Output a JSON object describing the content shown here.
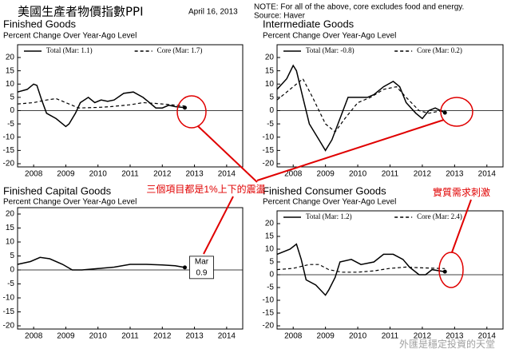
{
  "header": {
    "title": "美國生產者物價指數PPI",
    "date": "April 16, 2013",
    "note": "NOTE: For all of the above, core excludes food and energy.",
    "source": "Source:  Haver"
  },
  "annotations": {
    "oscillation": "三個項目都是1%上下的震盪",
    "demand": "實質需求刺激",
    "watermark": "外匯是穩定投資的天堂"
  },
  "chart_data": [
    {
      "type": "line",
      "title": "Finished Goods",
      "subtitle": "Percent Change Over Year-Ago Level",
      "zero_line": true,
      "xlim": [
        2008,
        2015
      ],
      "ylim": [
        -20,
        20
      ],
      "yticks": [
        -20,
        -15,
        -10,
        -5,
        0,
        5,
        10,
        15,
        20
      ],
      "xticks": [
        {
          "value": 2008.5,
          "label": "2008"
        },
        {
          "value": 2009.5,
          "label": "2009"
        },
        {
          "value": 2010.5,
          "label": "2010"
        },
        {
          "value": 2011.5,
          "label": "2011"
        },
        {
          "value": 2012.5,
          "label": "2012"
        },
        {
          "value": 2013.5,
          "label": "2013"
        },
        {
          "value": 2014.5,
          "label": "2014"
        }
      ],
      "series": [
        {
          "name": "Total (Mar: 1.1)",
          "color": "#000000",
          "style": "solid",
          "x": [
            2008.0,
            2008.3,
            2008.5,
            2008.6,
            2008.75,
            2008.9,
            2009.2,
            2009.5,
            2009.6,
            2009.8,
            2009.95,
            2010.2,
            2010.4,
            2010.6,
            2010.8,
            2011.0,
            2011.3,
            2011.6,
            2011.9,
            2012.1,
            2012.3,
            2012.5,
            2012.7,
            2012.9,
            2013.2
          ],
          "values": [
            7,
            8,
            10,
            9.5,
            4,
            -1,
            -3,
            -6,
            -5,
            -1,
            3,
            5,
            3,
            4,
            3.5,
            4,
            6.5,
            7,
            5,
            3,
            1,
            1,
            2,
            1.5,
            1.1
          ]
        },
        {
          "name": "Core (Mar: 1.7)",
          "color": "#000000",
          "style": "dashed",
          "x": [
            2008.0,
            2008.5,
            2008.9,
            2009.2,
            2009.5,
            2009.9,
            2010.5,
            2010.9,
            2011.5,
            2011.9,
            2012.3,
            2012.7,
            2013.2
          ],
          "values": [
            2.5,
            3,
            4,
            4.5,
            3,
            1,
            1.2,
            1.5,
            2.2,
            3,
            2.7,
            2.3,
            1.7
          ]
        }
      ]
    },
    {
      "type": "line",
      "title": "Intermediate Goods",
      "subtitle": "Percent Change Over Year-Ago Level",
      "zero_line": true,
      "xlim": [
        2008,
        2015
      ],
      "ylim": [
        -20,
        20
      ],
      "yticks": [
        -20,
        -15,
        -10,
        -5,
        0,
        5,
        10,
        15,
        20
      ],
      "xticks": [
        {
          "value": 2008.5,
          "label": "2008"
        },
        {
          "value": 2009.5,
          "label": "2009"
        },
        {
          "value": 2010.5,
          "label": "2010"
        },
        {
          "value": 2011.5,
          "label": "2011"
        },
        {
          "value": 2012.5,
          "label": "2012"
        },
        {
          "value": 2013.5,
          "label": "2013"
        },
        {
          "value": 2014.5,
          "label": "2014"
        }
      ],
      "series": [
        {
          "name": "Total (Mar: -0.8)",
          "color": "#000000",
          "style": "solid",
          "x": [
            2008.0,
            2008.3,
            2008.5,
            2008.6,
            2008.8,
            2009.0,
            2009.3,
            2009.5,
            2009.7,
            2009.95,
            2010.2,
            2010.5,
            2010.8,
            2011.0,
            2011.3,
            2011.6,
            2011.8,
            2012.0,
            2012.3,
            2012.5,
            2012.7,
            2012.9,
            2013.2
          ],
          "values": [
            8,
            12,
            17,
            15,
            5,
            -5,
            -11,
            -15,
            -11,
            -3,
            5,
            5,
            5,
            6,
            9,
            11,
            9,
            3,
            -1,
            -3,
            0,
            1,
            -0.8
          ]
        },
        {
          "name": "Core (Mar: 0.2)",
          "color": "#000000",
          "style": "dashed",
          "x": [
            2008.0,
            2008.5,
            2008.8,
            2009.1,
            2009.5,
            2009.8,
            2010.1,
            2010.5,
            2010.9,
            2011.3,
            2011.7,
            2012.0,
            2012.4,
            2012.7,
            2013.2
          ],
          "values": [
            4,
            9,
            12,
            5,
            -5,
            -8,
            -3,
            3,
            5,
            8,
            9,
            5,
            0,
            -1,
            0.2
          ]
        }
      ]
    },
    {
      "type": "line",
      "title": "Finished Capital Goods",
      "subtitle": "Percent Change Over Year-Ago Level",
      "zero_line": true,
      "annotation": {
        "label": "Mar",
        "value": 0.9
      },
      "xlim": [
        2008,
        2015
      ],
      "ylim": [
        -20,
        20
      ],
      "yticks": [
        -20,
        -15,
        -10,
        -5,
        0,
        5,
        10,
        15,
        20
      ],
      "xticks": [
        {
          "value": 2008.5,
          "label": "2008"
        },
        {
          "value": 2009.5,
          "label": "2009"
        },
        {
          "value": 2010.5,
          "label": "2010"
        },
        {
          "value": 2011.5,
          "label": "2011"
        },
        {
          "value": 2012.5,
          "label": "2012"
        },
        {
          "value": 2013.5,
          "label": "2013"
        },
        {
          "value": 2014.5,
          "label": "2014"
        }
      ],
      "series": [
        {
          "color": "#000000",
          "style": "solid",
          "x": [
            2008.0,
            2008.4,
            2008.7,
            2009.0,
            2009.4,
            2009.7,
            2010.0,
            2010.5,
            2011.0,
            2011.5,
            2012.0,
            2012.5,
            2012.9,
            2013.2
          ],
          "values": [
            2,
            3,
            4.5,
            4,
            2,
            0,
            0,
            0.5,
            1,
            2,
            2,
            1.8,
            1.5,
            0.9
          ]
        }
      ]
    },
    {
      "type": "line",
      "title": "Finished Consumer Goods",
      "subtitle": "Percent Change Over Year-Ago Level",
      "zero_line": true,
      "xlim": [
        2008,
        2015
      ],
      "ylim": [
        -20,
        20
      ],
      "yticks": [
        -20,
        -15,
        -10,
        -5,
        0,
        5,
        10,
        15,
        20
      ],
      "xticks": [
        {
          "value": 2008.5,
          "label": "2008"
        },
        {
          "value": 2009.5,
          "label": "2009"
        },
        {
          "value": 2010.5,
          "label": "2010"
        },
        {
          "value": 2011.5,
          "label": "2011"
        },
        {
          "value": 2012.5,
          "label": "2012"
        },
        {
          "value": 2013.5,
          "label": "2013"
        },
        {
          "value": 2014.5,
          "label": "2014"
        }
      ],
      "series": [
        {
          "name": "Total (Mar: 1.2)",
          "color": "#000000",
          "style": "solid",
          "x": [
            2008.0,
            2008.4,
            2008.6,
            2008.75,
            2008.9,
            2009.2,
            2009.5,
            2009.6,
            2009.8,
            2009.95,
            2010.3,
            2010.6,
            2011.0,
            2011.3,
            2011.6,
            2011.9,
            2012.1,
            2012.4,
            2012.6,
            2012.8,
            2013.2
          ],
          "values": [
            8,
            10,
            12,
            6,
            -2,
            -4,
            -8,
            -6,
            -1,
            5,
            6,
            4,
            5,
            8,
            8,
            6,
            3,
            0,
            0,
            2,
            1.2
          ]
        },
        {
          "name": "Core (Mar: 2.4)",
          "color": "#000000",
          "style": "dashed",
          "x": [
            2008.0,
            2008.5,
            2009.0,
            2009.3,
            2009.6,
            2010.0,
            2010.5,
            2011.0,
            2011.5,
            2012.0,
            2012.5,
            2013.2
          ],
          "values": [
            2,
            2.5,
            4,
            4,
            2,
            1,
            1,
            1.5,
            2.5,
            3,
            2.7,
            2.4
          ]
        }
      ]
    }
  ]
}
